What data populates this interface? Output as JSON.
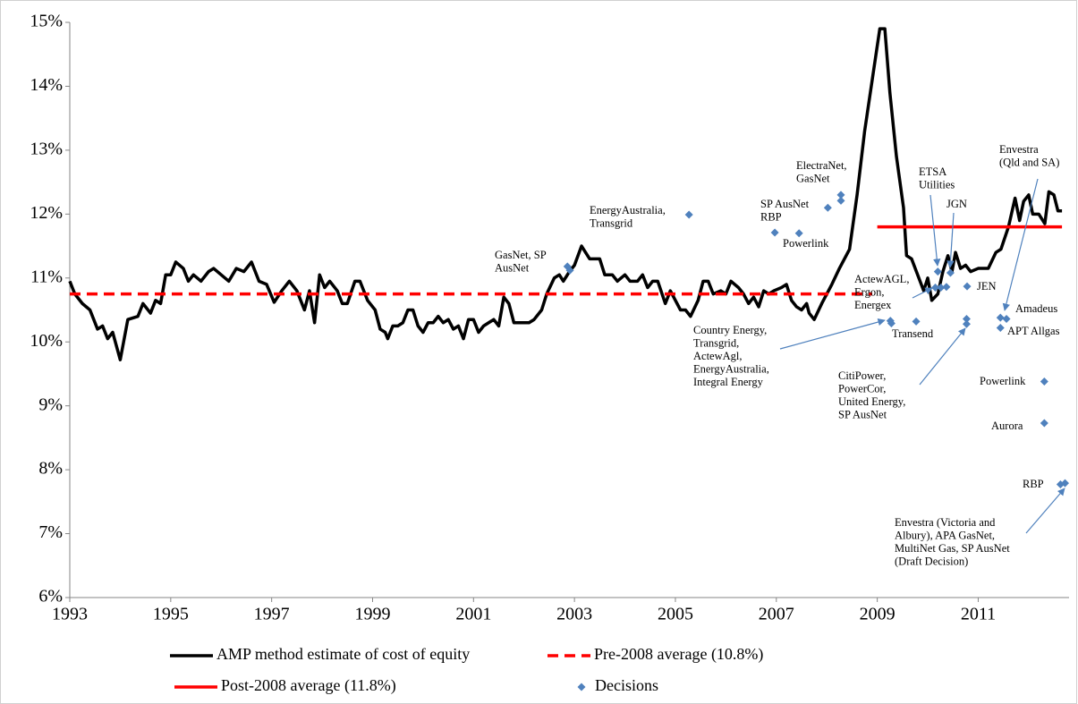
{
  "chart_data": {
    "type": "line",
    "xlim": [
      1993,
      2012.8
    ],
    "xticks": [
      1993,
      1995,
      1997,
      1999,
      2001,
      2003,
      2005,
      2007,
      2009,
      2011
    ],
    "ylim": [
      6,
      15
    ],
    "yticks": [
      {
        "value": 6,
        "label": "6%"
      },
      {
        "value": 7,
        "label": "7%"
      },
      {
        "value": 8,
        "label": "8%"
      },
      {
        "value": 9,
        "label": "9%"
      },
      {
        "value": 10,
        "label": "10%"
      },
      {
        "value": 11,
        "label": "11%"
      },
      {
        "value": 12,
        "label": "12%"
      },
      {
        "value": 13,
        "label": "13%"
      },
      {
        "value": 14,
        "label": "14%"
      },
      {
        "value": 15,
        "label": "15%"
      }
    ],
    "grid": false,
    "series": [
      {
        "name": "AMP method estimate of cost of equity",
        "color": "#000000",
        "dash": false,
        "x": [
          1993.0,
          1993.1,
          1993.25,
          1993.4,
          1993.55,
          1993.65,
          1993.75,
          1993.85,
          1994.0,
          1994.15,
          1994.35,
          1994.45,
          1994.6,
          1994.7,
          1994.8,
          1994.9,
          1995.0,
          1995.1,
          1995.25,
          1995.35,
          1995.45,
          1995.6,
          1995.75,
          1995.85,
          1996.0,
          1996.15,
          1996.3,
          1996.45,
          1996.6,
          1996.75,
          1996.9,
          1997.05,
          1997.2,
          1997.35,
          1997.5,
          1997.65,
          1997.75,
          1997.85,
          1997.95,
          1998.05,
          1998.15,
          1998.3,
          1998.4,
          1998.5,
          1998.65,
          1998.75,
          1998.9,
          1999.05,
          1999.15,
          1999.25,
          1999.3,
          1999.4,
          1999.5,
          1999.6,
          1999.7,
          1999.8,
          1999.9,
          2000.0,
          2000.1,
          2000.2,
          2000.3,
          2000.4,
          2000.5,
          2000.6,
          2000.7,
          2000.8,
          2000.9,
          2001.0,
          2001.1,
          2001.2,
          2001.3,
          2001.4,
          2001.5,
          2001.6,
          2001.7,
          2001.8,
          2001.95,
          2002.1,
          2002.2,
          2002.35,
          2002.45,
          2002.6,
          2002.7,
          2002.78,
          2002.9,
          2003.0,
          2003.14,
          2003.3,
          2003.5,
          2003.6,
          2003.75,
          2003.85,
          2004.0,
          2004.1,
          2004.25,
          2004.35,
          2004.45,
          2004.55,
          2004.65,
          2004.8,
          2004.9,
          2005.0,
          2005.1,
          2005.2,
          2005.3,
          2005.45,
          2005.55,
          2005.65,
          2005.75,
          2005.9,
          2006.0,
          2006.1,
          2006.25,
          2006.35,
          2006.45,
          2006.55,
          2006.65,
          2006.75,
          2006.85,
          2006.95,
          2007.1,
          2007.2,
          2007.3,
          2007.4,
          2007.5,
          2007.6,
          2007.65,
          2007.75,
          2007.9,
          2008.1,
          2008.25,
          2008.45,
          2008.6,
          2008.75,
          2008.9,
          2009.05,
          2009.15,
          2009.25,
          2009.38,
          2009.52,
          2009.58,
          2009.68,
          2009.8,
          2009.92,
          2010.0,
          2010.08,
          2010.2,
          2010.3,
          2010.4,
          2010.48,
          2010.55,
          2010.65,
          2010.75,
          2010.85,
          2011.0,
          2011.2,
          2011.35,
          2011.45,
          2011.6,
          2011.73,
          2011.82,
          2011.9,
          2012.0,
          2012.08,
          2012.2,
          2012.32,
          2012.4,
          2012.5,
          2012.58,
          2012.66
        ],
        "values": [
          10.95,
          10.75,
          10.6,
          10.5,
          10.2,
          10.25,
          10.05,
          10.15,
          9.72,
          10.35,
          10.4,
          10.6,
          10.45,
          10.65,
          10.6,
          11.05,
          11.05,
          11.25,
          11.15,
          10.95,
          11.05,
          10.95,
          11.1,
          11.15,
          11.05,
          10.95,
          11.15,
          11.1,
          11.25,
          10.95,
          10.9,
          10.62,
          10.8,
          10.95,
          10.8,
          10.5,
          10.8,
          10.3,
          11.05,
          10.85,
          10.95,
          10.8,
          10.6,
          10.6,
          10.95,
          10.95,
          10.65,
          10.5,
          10.2,
          10.15,
          10.05,
          10.25,
          10.25,
          10.3,
          10.5,
          10.5,
          10.25,
          10.15,
          10.3,
          10.3,
          10.4,
          10.3,
          10.35,
          10.2,
          10.25,
          10.05,
          10.35,
          10.35,
          10.15,
          10.25,
          10.3,
          10.35,
          10.25,
          10.7,
          10.6,
          10.3,
          10.3,
          10.3,
          10.35,
          10.5,
          10.75,
          11.0,
          11.05,
          10.95,
          11.1,
          11.2,
          11.5,
          11.3,
          11.3,
          11.05,
          11.05,
          10.95,
          11.05,
          10.95,
          10.95,
          11.05,
          10.85,
          10.95,
          10.95,
          10.6,
          10.8,
          10.65,
          10.5,
          10.5,
          10.4,
          10.65,
          10.95,
          10.95,
          10.75,
          10.8,
          10.75,
          10.95,
          10.85,
          10.75,
          10.6,
          10.7,
          10.55,
          10.8,
          10.75,
          10.8,
          10.85,
          10.9,
          10.65,
          10.55,
          10.5,
          10.6,
          10.45,
          10.35,
          10.6,
          10.9,
          11.15,
          11.45,
          12.3,
          13.3,
          14.1,
          14.9,
          14.9,
          13.9,
          12.9,
          12.1,
          11.35,
          11.3,
          11.05,
          10.8,
          11.0,
          10.65,
          10.75,
          11.1,
          11.35,
          11.1,
          11.4,
          11.15,
          11.2,
          11.1,
          11.15,
          11.15,
          11.4,
          11.45,
          11.8,
          12.25,
          11.9,
          12.2,
          12.3,
          12.0,
          12.0,
          11.85,
          12.35,
          12.3,
          12.05,
          12.05
        ]
      },
      {
        "name": "Pre-2008 average (10.8%)",
        "color": "#ff0000",
        "dash": true,
        "x": [
          1993,
          2008.9
        ],
        "values": [
          10.75,
          10.75
        ]
      },
      {
        "name": "Post-2008 average (11.8%)",
        "color": "#ff0000",
        "dash": false,
        "x": [
          2009,
          2012.66
        ],
        "values": [
          11.8,
          11.8
        ]
      },
      {
        "name": "Decisions",
        "type": "scatter",
        "color": "#4f81bd",
        "x": [
          2002.86,
          2002.91,
          2005.27,
          2006.97,
          2007.45,
          2008.02,
          2008.28,
          2008.28,
          2010.2,
          2010.45,
          2010.15,
          2010.26,
          2010.37,
          2010.78,
          2009.26,
          2009.28,
          2009.77,
          2010.77,
          2010.77,
          2011.44,
          2011.56,
          2011.44,
          2012.31,
          2012.31,
          2012.63,
          2012.72
        ],
        "values": [
          11.18,
          11.12,
          11.99,
          11.71,
          11.7,
          12.1,
          12.3,
          12.21,
          11.1,
          11.08,
          10.85,
          10.85,
          10.86,
          10.87,
          10.33,
          10.29,
          10.32,
          10.36,
          10.28,
          10.38,
          10.36,
          10.22,
          9.38,
          8.73,
          7.77,
          7.79
        ]
      }
    ],
    "annotations": [
      [
        "GasNet, SP",
        "AusNet"
      ],
      [
        "EnergyAustralia,",
        "Transgrid"
      ],
      [
        "ElectraNet,",
        "GasNet"
      ],
      [
        "SP AusNet",
        "RBP"
      ],
      [
        "Powerlink"
      ],
      [
        "ETSA",
        "Utilities"
      ],
      [
        "JGN"
      ],
      [
        "ActewAGL,",
        "Ergon,",
        "Energex"
      ],
      [
        "JEN"
      ],
      [
        "Country Energy,",
        "Transgrid,",
        "ActewAgl,",
        "EnergyAustralia,",
        "Integral Energy"
      ],
      [
        "Transend"
      ],
      [
        "CitiPower,",
        "PowerCor,",
        "United Energy,",
        "SP AusNet"
      ],
      [
        "Envestra",
        "(Qld and SA)"
      ],
      [
        "Amadeus"
      ],
      [
        "APT Allgas"
      ],
      [
        "Powerlink"
      ],
      [
        "Aurora"
      ],
      [
        "RBP"
      ],
      [
        "Envestra (Victoria and",
        "Albury), APA GasNet,",
        "MultiNet Gas, SP AusNet",
        "(Draft Decision)"
      ]
    ]
  }
}
